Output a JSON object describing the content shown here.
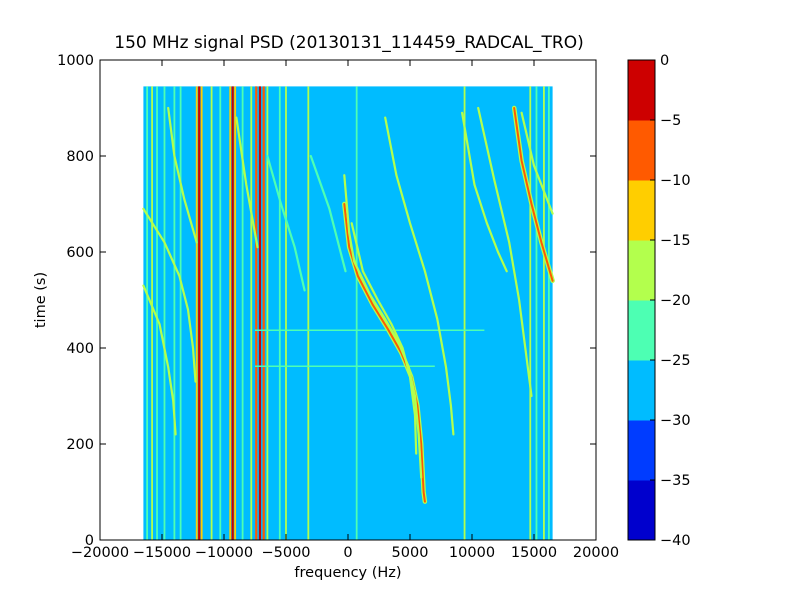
{
  "chart_data": {
    "type": "heatmap",
    "title": "150 MHz signal PSD (20130131_114459_RADCAL_TRO)",
    "xlabel": "frequency (Hz)",
    "ylabel": "time (s)",
    "xlim": [
      -20000,
      20000
    ],
    "ylim": [
      0,
      1000
    ],
    "xticks": [
      -20000,
      -15000,
      -10000,
      -5000,
      0,
      5000,
      10000,
      15000,
      20000
    ],
    "xtick_labels": [
      "−20000",
      "−15000",
      "−10000",
      "−5000",
      "0",
      "5000",
      "10000",
      "15000",
      "20000"
    ],
    "yticks": [
      0,
      200,
      400,
      600,
      800,
      1000
    ],
    "ytick_labels": [
      "0",
      "200",
      "400",
      "600",
      "800",
      "1000"
    ],
    "data_extent": {
      "x": [
        -16500,
        16500
      ],
      "y": [
        0,
        945
      ]
    },
    "background_level": -27.5,
    "grid": false,
    "colorbar": {
      "levels": [
        -40,
        -35,
        -30,
        -25,
        -20,
        -15,
        -10,
        -5,
        0
      ],
      "tick_labels": [
        "−40",
        "−35",
        "−30",
        "−25",
        "−20",
        "−15",
        "−10",
        "−5",
        "0"
      ],
      "colors": [
        "#0000cd",
        "#003cff",
        "#00bcff",
        "#4dffb3",
        "#b3ff4d",
        "#ffce00",
        "#ff5a00",
        "#cd0000"
      ]
    },
    "vertical_lines": [
      {
        "x": -16200,
        "level": -22.5
      },
      {
        "x": -15800,
        "level": -17.5
      },
      {
        "x": -15400,
        "level": -22.5
      },
      {
        "x": -14800,
        "level": -22.5
      },
      {
        "x": -14000,
        "level": -22.5
      },
      {
        "x": -13500,
        "level": -22.5
      },
      {
        "x": -12200,
        "level": -12.5
      },
      {
        "x": -12000,
        "level": -2.5
      },
      {
        "x": -11800,
        "level": -12.5
      },
      {
        "x": -11000,
        "level": -17.5
      },
      {
        "x": -10300,
        "level": -22.5
      },
      {
        "x": -9500,
        "level": -12.5
      },
      {
        "x": -9300,
        "level": -2.5
      },
      {
        "x": -9100,
        "level": -12.5
      },
      {
        "x": -8500,
        "level": -22.5
      },
      {
        "x": -7800,
        "level": -17.5
      },
      {
        "x": -7400,
        "level": -7.5
      },
      {
        "x": -7100,
        "level": -2.5
      },
      {
        "x": -6800,
        "level": -7.5
      },
      {
        "x": -6500,
        "level": -17.5
      },
      {
        "x": -5500,
        "level": -22.5
      },
      {
        "x": -5000,
        "level": -17.5
      },
      {
        "x": -3200,
        "level": -17.5
      },
      {
        "x": 700,
        "level": -22.5
      },
      {
        "x": 9400,
        "level": -17.5
      },
      {
        "x": 14700,
        "level": -17.5
      },
      {
        "x": 15200,
        "level": -22.5
      },
      {
        "x": 15800,
        "level": -17.5
      },
      {
        "x": 16200,
        "level": -22.5
      }
    ],
    "horizontal_lines": [
      {
        "y": 437,
        "x_range": [
          -7500,
          11000
        ],
        "level": -22.5
      },
      {
        "y": 362,
        "x_range": [
          -7500,
          7000
        ],
        "level": -22.5
      }
    ],
    "sweep_traces": [
      {
        "points": [
          [
            -16500,
            690
          ],
          [
            -14800,
            620
          ],
          [
            -13600,
            550
          ],
          [
            -12900,
            480
          ],
          [
            -12500,
            400
          ],
          [
            -12300,
            330
          ]
        ],
        "level": -17.5
      },
      {
        "points": [
          [
            -16500,
            530
          ],
          [
            -15200,
            450
          ],
          [
            -14500,
            360
          ],
          [
            -14100,
            290
          ],
          [
            -13900,
            220
          ]
        ],
        "level": -17.5
      },
      {
        "points": [
          [
            -14500,
            900
          ],
          [
            -14000,
            800
          ],
          [
            -13200,
            710
          ],
          [
            -12200,
            620
          ]
        ],
        "level": -17.5
      },
      {
        "points": [
          [
            -9000,
            880
          ],
          [
            -8200,
            740
          ],
          [
            -7300,
            610
          ]
        ],
        "level": -17.5
      },
      {
        "points": [
          [
            -6500,
            800
          ],
          [
            -5400,
            700
          ],
          [
            -4300,
            610
          ],
          [
            -3500,
            520
          ]
        ],
        "level": -22.5
      },
      {
        "points": [
          [
            -3000,
            800
          ],
          [
            -1500,
            690
          ],
          [
            -200,
            560
          ]
        ],
        "level": -22.5
      },
      {
        "points": [
          [
            -300,
            700
          ],
          [
            100,
            610
          ],
          [
            800,
            550
          ],
          [
            2000,
            490
          ],
          [
            3200,
            440
          ],
          [
            4300,
            390
          ],
          [
            5100,
            340
          ],
          [
            5600,
            280
          ],
          [
            5900,
            200
          ],
          [
            6100,
            100
          ],
          [
            6200,
            80
          ]
        ],
        "level": -7.5
      },
      {
        "points": [
          [
            -300,
            760
          ],
          [
            100,
            640
          ],
          [
            500,
            580
          ],
          [
            1800,
            510
          ],
          [
            3000,
            460
          ],
          [
            4100,
            410
          ],
          [
            4900,
            360
          ],
          [
            5400,
            300
          ],
          [
            5700,
            220
          ],
          [
            5900,
            130
          ]
        ],
        "level": -17.5
      },
      {
        "points": [
          [
            300,
            660
          ],
          [
            1200,
            560
          ],
          [
            2400,
            500
          ],
          [
            3500,
            450
          ],
          [
            4400,
            400
          ],
          [
            5000,
            340
          ],
          [
            5400,
            260
          ],
          [
            5500,
            180
          ]
        ],
        "level": -17.5
      },
      {
        "points": [
          [
            3000,
            880
          ],
          [
            3900,
            760
          ],
          [
            5000,
            660
          ],
          [
            6200,
            560
          ],
          [
            7200,
            460
          ],
          [
            7900,
            360
          ],
          [
            8300,
            280
          ],
          [
            8500,
            220
          ]
        ],
        "level": -17.5
      },
      {
        "points": [
          [
            9200,
            890
          ],
          [
            10200,
            740
          ],
          [
            11200,
            660
          ],
          [
            12100,
            600
          ],
          [
            12800,
            560
          ]
        ],
        "level": -17.5
      },
      {
        "points": [
          [
            10500,
            900
          ],
          [
            11800,
            750
          ],
          [
            13000,
            620
          ],
          [
            13800,
            500
          ],
          [
            14300,
            400
          ],
          [
            14800,
            300
          ]
        ],
        "level": -17.5
      },
      {
        "points": [
          [
            13400,
            900
          ],
          [
            14000,
            790
          ],
          [
            14800,
            700
          ],
          [
            15600,
            620
          ],
          [
            16500,
            540
          ]
        ],
        "level": -7.5
      },
      {
        "points": [
          [
            14000,
            890
          ],
          [
            15000,
            780
          ],
          [
            16500,
            680
          ]
        ],
        "level": -17.5
      }
    ]
  }
}
